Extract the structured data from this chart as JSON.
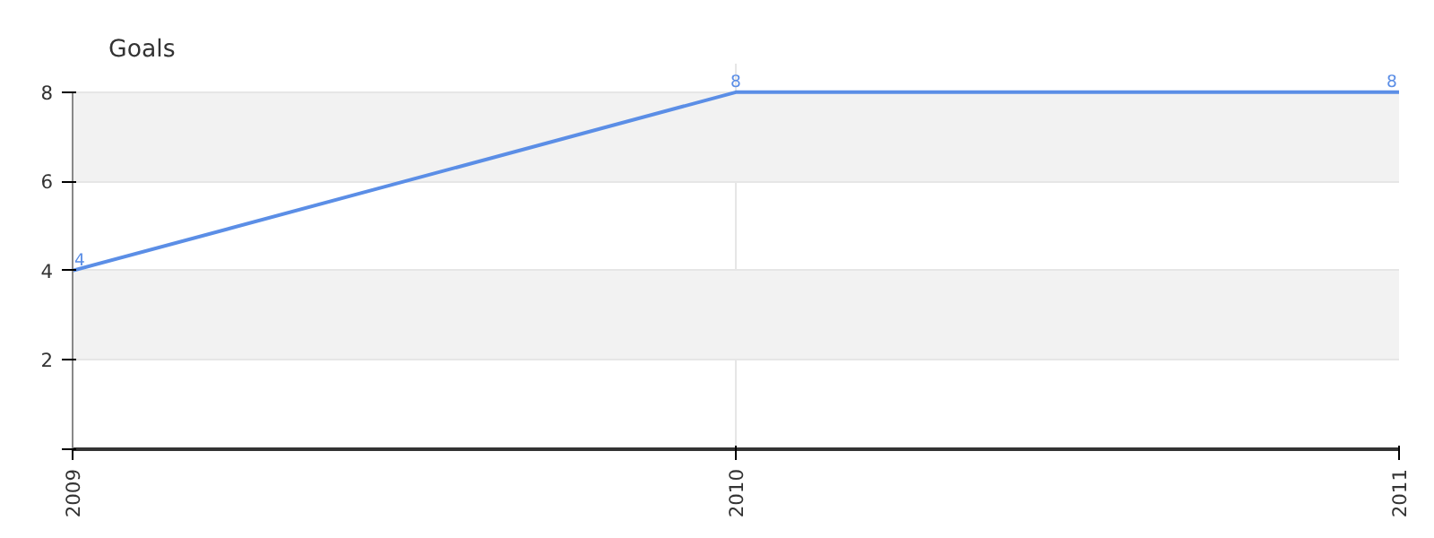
{
  "chart_data": {
    "type": "line",
    "title": "Goals",
    "categories": [
      "2009",
      "2010",
      "2011"
    ],
    "series": [
      {
        "color": "#5b8ee6",
        "values": [
          4,
          8,
          8
        ]
      }
    ],
    "ylim": [
      0,
      8
    ],
    "yticks": [
      {
        "value": 0,
        "label": null
      },
      2,
      4,
      6,
      8
    ],
    "grid": true,
    "data_labels": true,
    "marker": "none"
  }
}
